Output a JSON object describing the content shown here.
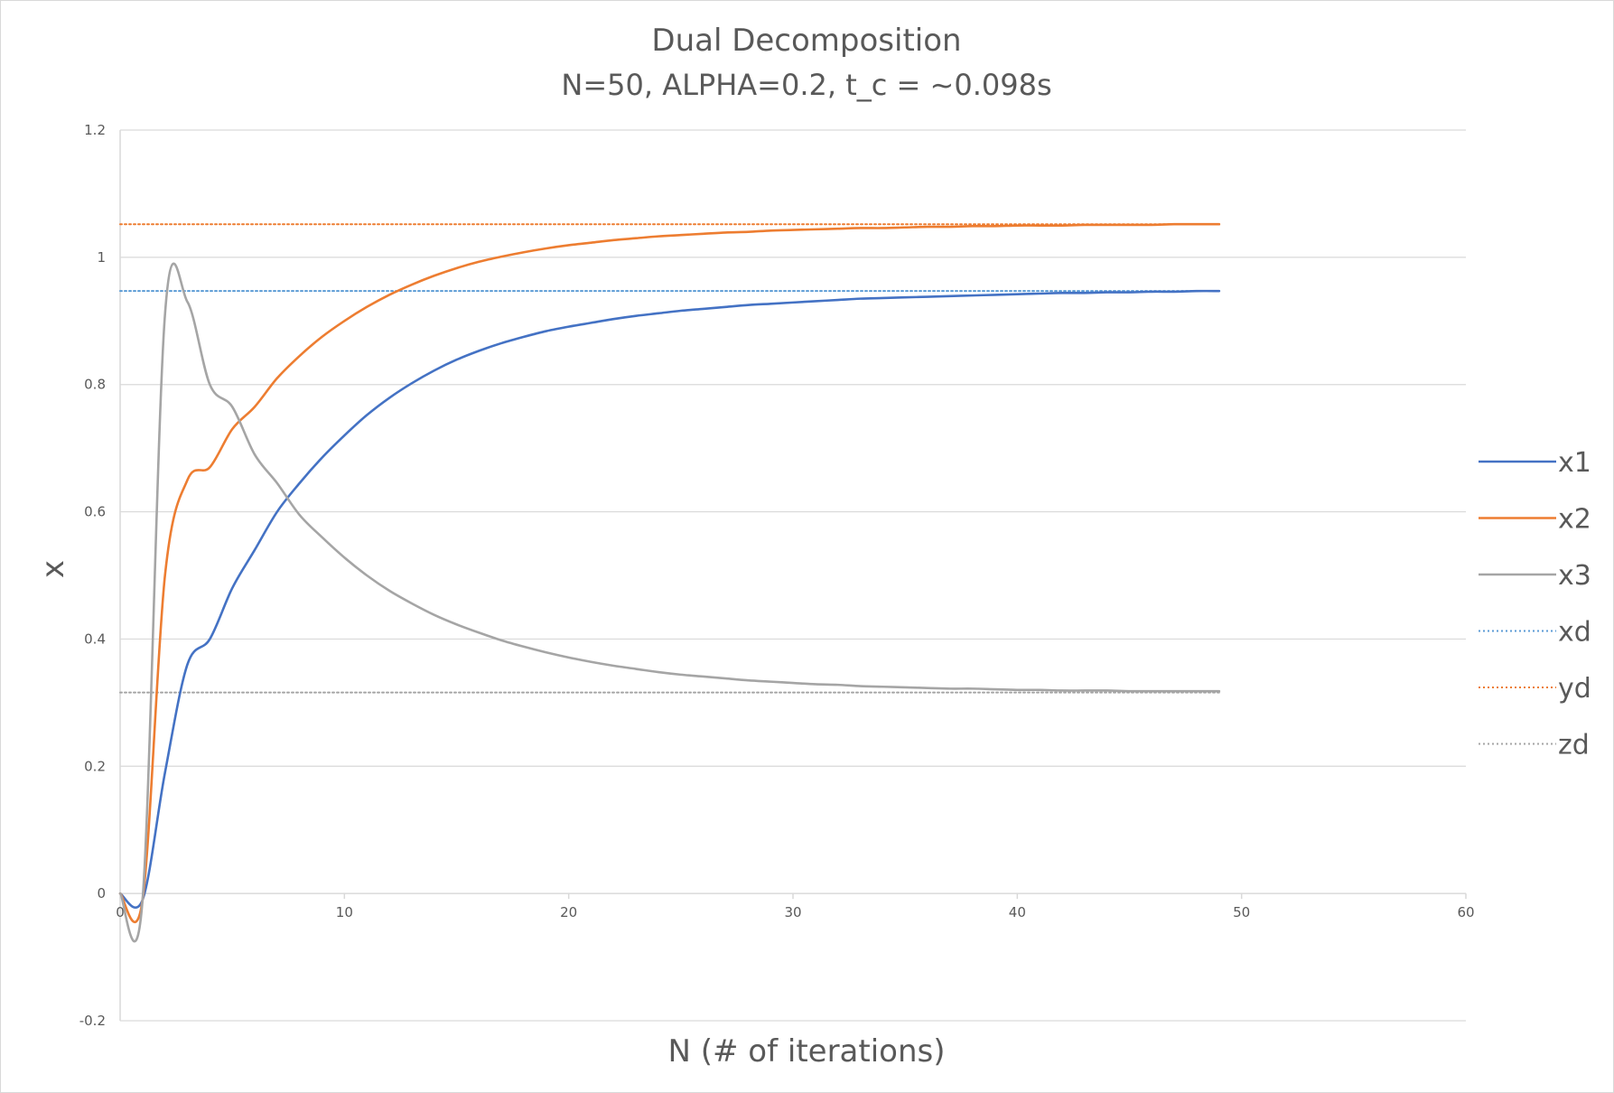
{
  "chart_data": {
    "type": "line",
    "title": "Dual Decomposition",
    "subtitle": "N=50, ALPHA=0.2, t_c = ~0.098s",
    "xlabel": "N (# of iterations)",
    "ylabel": "x",
    "xlim": [
      0,
      60
    ],
    "ylim": [
      -0.2,
      1.2
    ],
    "x_ticks": [
      0,
      10,
      20,
      30,
      40,
      50,
      60
    ],
    "y_ticks": [
      -0.2,
      0,
      0.2,
      0.4,
      0.6,
      0.8,
      1,
      1.2
    ],
    "y_tick_labels": [
      "-0.2",
      "0",
      "0.2",
      "0.4",
      "0.6",
      "0.8",
      "1",
      "1.2"
    ],
    "grid": "horizontal",
    "legend_position": "right",
    "series": [
      {
        "name": "x1",
        "color": "#4472c4",
        "style": "solid",
        "x": [
          0,
          1,
          2,
          3,
          4,
          5,
          6,
          7,
          8,
          9,
          10,
          11,
          12,
          13,
          14,
          15,
          16,
          17,
          18,
          19,
          20,
          21,
          22,
          23,
          24,
          25,
          26,
          27,
          28,
          29,
          30,
          31,
          32,
          33,
          34,
          35,
          36,
          37,
          38,
          39,
          40,
          41,
          42,
          43,
          44,
          45,
          46,
          47,
          48,
          49
        ],
        "y": [
          0,
          -0.01,
          0.19,
          0.36,
          0.4,
          0.48,
          0.54,
          0.6,
          0.645,
          0.685,
          0.72,
          0.752,
          0.779,
          0.802,
          0.822,
          0.839,
          0.853,
          0.865,
          0.875,
          0.884,
          0.891,
          0.897,
          0.903,
          0.908,
          0.912,
          0.916,
          0.919,
          0.922,
          0.925,
          0.927,
          0.929,
          0.931,
          0.933,
          0.935,
          0.936,
          0.937,
          0.938,
          0.939,
          0.94,
          0.941,
          0.942,
          0.943,
          0.944,
          0.944,
          0.945,
          0.945,
          0.946,
          0.946,
          0.947,
          0.947
        ]
      },
      {
        "name": "x2",
        "color": "#ed7d31",
        "style": "solid",
        "x": [
          0,
          1,
          2,
          3,
          4,
          5,
          6,
          7,
          8,
          9,
          10,
          11,
          12,
          13,
          14,
          15,
          16,
          17,
          18,
          19,
          20,
          21,
          22,
          23,
          24,
          25,
          26,
          27,
          28,
          29,
          30,
          31,
          32,
          33,
          34,
          35,
          36,
          37,
          38,
          39,
          40,
          41,
          42,
          43,
          44,
          45,
          46,
          47,
          48,
          49
        ],
        "y": [
          0,
          -0.01,
          0.5,
          0.65,
          0.67,
          0.73,
          0.765,
          0.81,
          0.845,
          0.875,
          0.9,
          0.922,
          0.941,
          0.957,
          0.971,
          0.983,
          0.993,
          1.001,
          1.008,
          1.014,
          1.019,
          1.023,
          1.027,
          1.03,
          1.033,
          1.035,
          1.037,
          1.039,
          1.04,
          1.042,
          1.043,
          1.044,
          1.045,
          1.046,
          1.046,
          1.047,
          1.048,
          1.048,
          1.049,
          1.049,
          1.05,
          1.05,
          1.05,
          1.051,
          1.051,
          1.051,
          1.051,
          1.052,
          1.052,
          1.052
        ]
      },
      {
        "name": "x3",
        "color": "#a5a5a5",
        "style": "solid",
        "x": [
          0,
          1,
          2,
          3,
          4,
          5,
          6,
          7,
          8,
          9,
          10,
          11,
          12,
          13,
          14,
          15,
          16,
          17,
          18,
          19,
          20,
          21,
          22,
          23,
          24,
          25,
          26,
          27,
          28,
          29,
          30,
          31,
          32,
          33,
          34,
          35,
          36,
          37,
          38,
          39,
          40,
          41,
          42,
          43,
          44,
          45,
          46,
          47,
          48,
          49
        ],
        "y": [
          0,
          -0.01,
          0.91,
          0.93,
          0.8,
          0.765,
          0.69,
          0.645,
          0.595,
          0.56,
          0.528,
          0.5,
          0.476,
          0.456,
          0.438,
          0.423,
          0.41,
          0.398,
          0.388,
          0.379,
          0.371,
          0.364,
          0.358,
          0.353,
          0.348,
          0.344,
          0.341,
          0.338,
          0.335,
          0.333,
          0.331,
          0.329,
          0.328,
          0.326,
          0.325,
          0.324,
          0.323,
          0.322,
          0.322,
          0.321,
          0.32,
          0.32,
          0.319,
          0.319,
          0.319,
          0.318,
          0.318,
          0.318,
          0.318,
          0.318
        ]
      },
      {
        "name": "xd",
        "color": "#5b9bd5",
        "style": "dotted",
        "x": [
          0,
          49
        ],
        "y": [
          0.947,
          0.947
        ]
      },
      {
        "name": "yd",
        "color": "#ed7d31",
        "style": "dotted",
        "x": [
          0,
          49
        ],
        "y": [
          1.052,
          1.052
        ]
      },
      {
        "name": "zd",
        "color": "#a5a5a5",
        "style": "dotted",
        "x": [
          0,
          49
        ],
        "y": [
          0.316,
          0.316
        ]
      }
    ]
  }
}
